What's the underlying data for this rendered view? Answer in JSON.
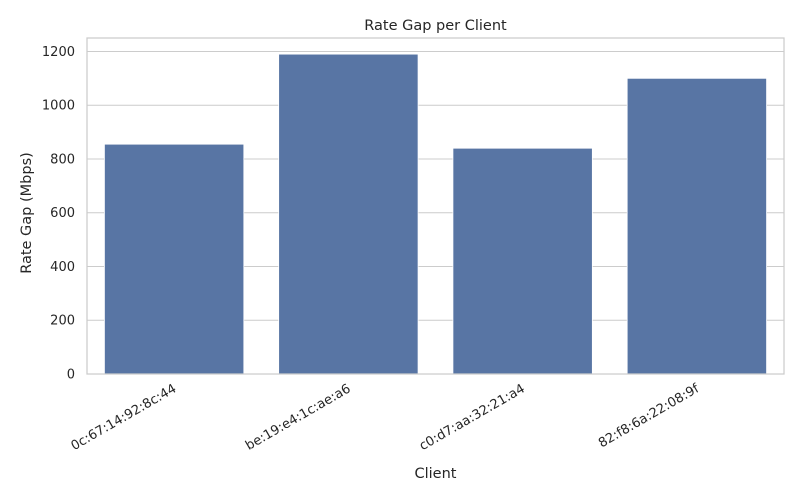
{
  "chart_data": {
    "type": "bar",
    "title": "Rate Gap per Client",
    "xlabel": "Client",
    "ylabel": "Rate Gap (Mbps)",
    "categories": [
      "0c:67:14:92:8c:44",
      "be:19:e4:1c:ae:a6",
      "c0:d7:aa:32:21:a4",
      "82:f8:6a:22:08:9f"
    ],
    "values": [
      855,
      1190,
      840,
      1100
    ],
    "ylim": [
      0,
      1250
    ],
    "yticks": [
      0,
      200,
      400,
      600,
      800,
      1000,
      1200
    ],
    "grid": true,
    "x_tick_rotation": 30,
    "colors": {
      "bar": "#5875a4",
      "grid": "#cccccc",
      "spine": "#cccccc",
      "text": "#262626"
    }
  }
}
